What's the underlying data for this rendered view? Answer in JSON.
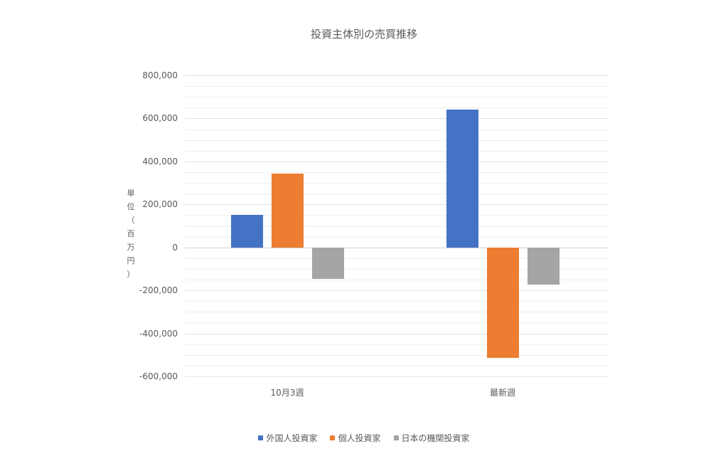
{
  "chart_data": {
    "type": "bar",
    "title": "投資主体別の売買推移",
    "xlabel": "",
    "ylabel": "単位（百万円）",
    "categories": [
      "10月3週",
      "最新週"
    ],
    "series": [
      {
        "name": "外国人投資家",
        "color": "#4472C4",
        "values": [
          152000,
          642000
        ]
      },
      {
        "name": "個人投資家",
        "color": "#ED7D31",
        "values": [
          344000,
          -513000
        ]
      },
      {
        "name": "日本の機関投資家",
        "color": "#A5A5A5",
        "values": [
          -146000,
          -172000
        ]
      }
    ],
    "ylim": [
      -600000,
      800000
    ],
    "yticks": [
      "800,000",
      "600,000",
      "400,000",
      "200,000",
      "0",
      "-200,000",
      "-400,000",
      "-600,000"
    ],
    "ytick_values": [
      800000,
      600000,
      400000,
      200000,
      0,
      -200000,
      -400000,
      -600000
    ],
    "grid": true,
    "minor_grid_step": 50000,
    "legend_position": "bottom"
  },
  "ylabel_chars": [
    "単",
    "位",
    "（",
    "百",
    "万",
    "円",
    "）"
  ]
}
